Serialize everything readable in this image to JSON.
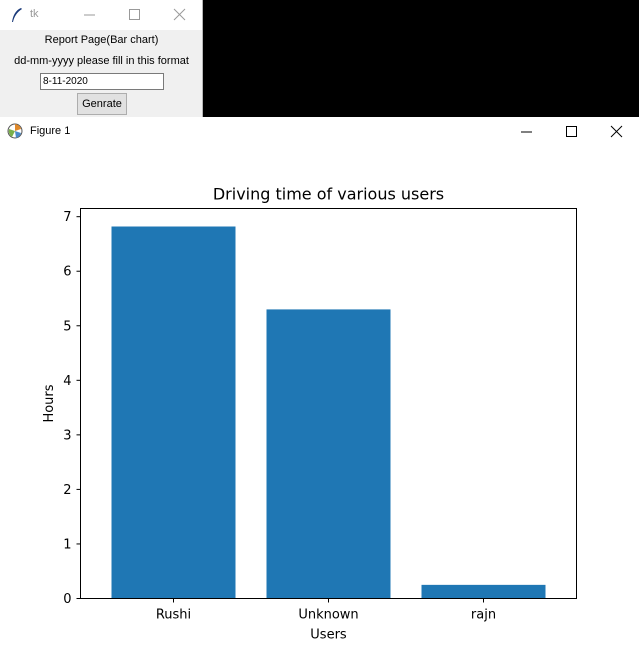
{
  "tk_window": {
    "title": "tk",
    "label_title": "Report Page(Bar chart)",
    "label_format": "dd-mm-yyyy please fill in this format",
    "date_entry_value": "8-11-2020",
    "generate_button": "Genrate"
  },
  "figure_window": {
    "title": "Figure 1"
  },
  "colors": {
    "bar": "#1f77b4",
    "tk_bg": "#f0f0f0"
  },
  "chart_data": {
    "type": "bar",
    "title": "Driving time of various users",
    "xlabel": "Users",
    "ylabel": "Hours",
    "categories": [
      "Rushi",
      "Unknown",
      "rajn"
    ],
    "values": [
      6.82,
      5.3,
      0.25
    ],
    "ylim": [
      0,
      7.15
    ],
    "yticks": [
      0,
      1,
      2,
      3,
      4,
      5,
      6,
      7
    ],
    "grid": false
  }
}
